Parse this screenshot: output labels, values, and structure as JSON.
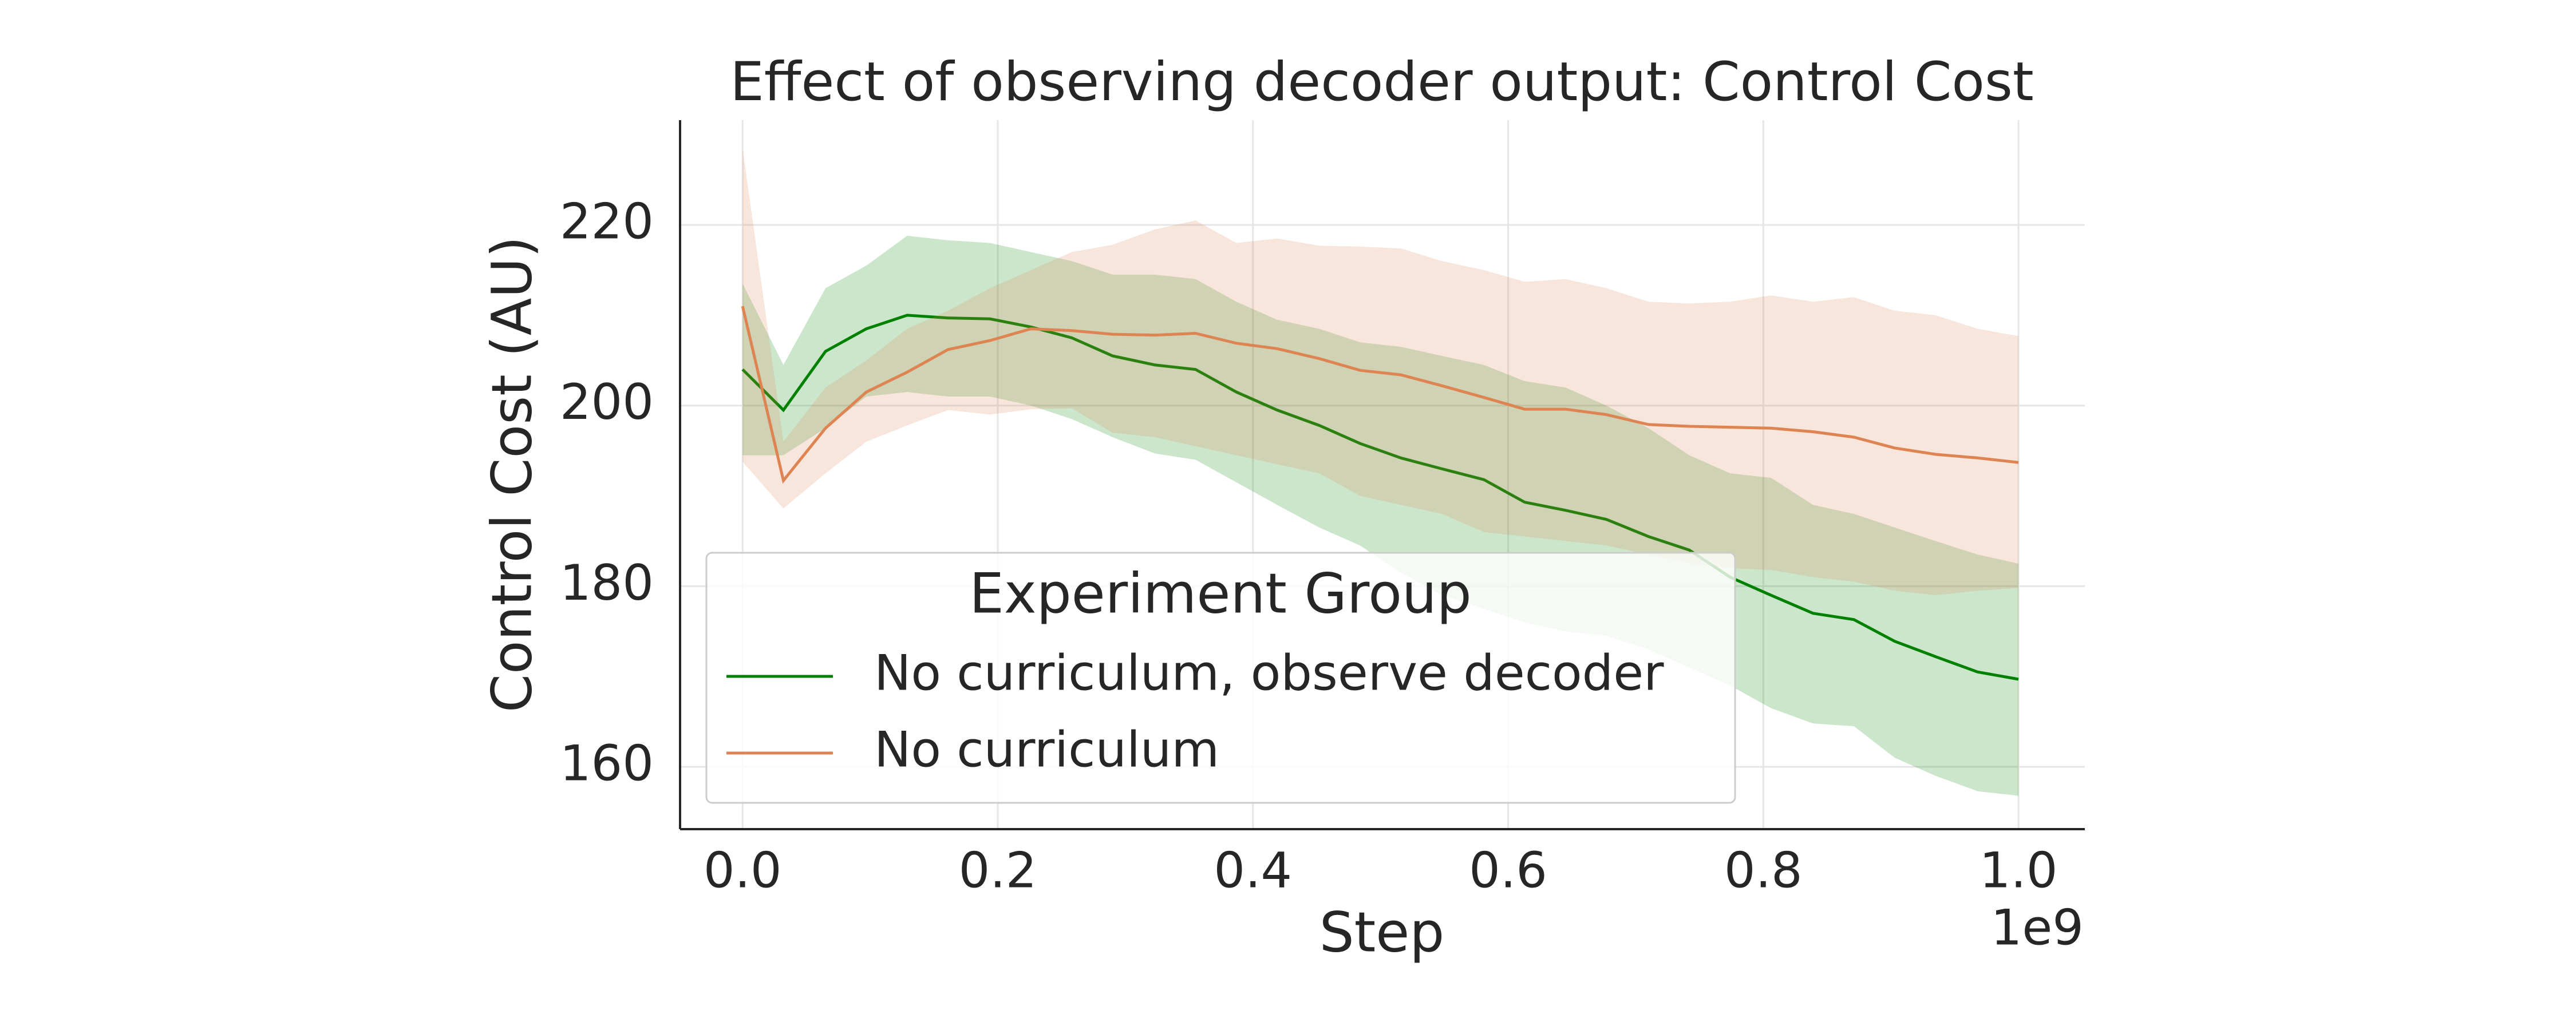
{
  "chart_data": {
    "type": "line",
    "title": "Effect of observing decoder output: Control Cost",
    "xlabel": "Step",
    "ylabel": "Control Cost (AU)",
    "x_offset_label": "1e9",
    "legend_title": "Experiment Group",
    "legend_loc": "lower left",
    "grid": true,
    "band_opacity": 0.2,
    "x": [
      0,
      0.032,
      0.065,
      0.097,
      0.129,
      0.161,
      0.194,
      0.226,
      0.258,
      0.29,
      0.323,
      0.355,
      0.387,
      0.419,
      0.452,
      0.484,
      0.516,
      0.548,
      0.581,
      0.613,
      0.645,
      0.677,
      0.71,
      0.742,
      0.774,
      0.806,
      0.839,
      0.871,
      0.903,
      0.935,
      0.968,
      1.0
    ],
    "series": [
      {
        "name": "No curriculum, observe decoder",
        "color": "#008000",
        "values": [
          204,
          199.5,
          206,
          208.5,
          210,
          209.7,
          209.6,
          208.7,
          207.5,
          205.5,
          204.5,
          204,
          201.5,
          199.5,
          197.8,
          195.8,
          194.2,
          193,
          191.8,
          189.3,
          188.4,
          187.4,
          185.5,
          184,
          181,
          179,
          177,
          176.3,
          173.9,
          172.2,
          170.5,
          169.7
        ],
        "upper": [
          213.5,
          204.5,
          213,
          215.5,
          218.8,
          218.3,
          218,
          217,
          216,
          214.5,
          214.5,
          214,
          211.5,
          209.5,
          208.5,
          207,
          206.5,
          205.5,
          204.5,
          202.7,
          202,
          200,
          197.5,
          194.5,
          192.5,
          192,
          189,
          188,
          186.5,
          185,
          183.5,
          182.5
        ],
        "lower": [
          194.5,
          194.5,
          197.5,
          201,
          201.5,
          201,
          201,
          200,
          198.5,
          196.5,
          194.7,
          194,
          191.5,
          189,
          186.5,
          184.5,
          181.5,
          179,
          177.5,
          176,
          175,
          174.5,
          173,
          171,
          169,
          166.5,
          164.8,
          164.5,
          161,
          159,
          157.3,
          156.8
        ]
      },
      {
        "name": "No curriculum",
        "color": "#dd8452",
        "values": [
          211,
          191.7,
          197.5,
          201.5,
          203.7,
          206.2,
          207.2,
          208.5,
          208.3,
          207.9,
          207.8,
          208,
          206.9,
          206.3,
          205.2,
          203.9,
          203.4,
          202.2,
          200.9,
          199.6,
          199.6,
          199,
          197.9,
          197.7,
          197.6,
          197.5,
          197.1,
          196.5,
          195.3,
          194.6,
          194.2,
          193.7
        ],
        "upper": [
          228.5,
          196,
          202,
          205,
          208.5,
          210.5,
          213,
          215,
          217,
          217.8,
          219.5,
          220.5,
          218,
          218.5,
          217.7,
          217.6,
          217.4,
          216,
          215,
          213.7,
          214,
          213,
          211.5,
          211.3,
          211.5,
          212.2,
          211.5,
          212,
          210.5,
          210,
          208.5,
          207.7
        ],
        "lower": [
          193.8,
          188.6,
          192.5,
          196,
          197.8,
          199.5,
          199,
          199.6,
          199.7,
          197,
          196.5,
          195.5,
          194.5,
          193.5,
          192.5,
          190,
          189,
          188,
          186,
          185.5,
          185,
          184.5,
          183.5,
          182.5,
          182,
          181.8,
          181,
          180.5,
          179.5,
          179,
          179.5,
          179.8
        ]
      }
    ],
    "xlim": [
      -0.049,
      1.052
    ],
    "xticks": [
      {
        "value": 0,
        "label": "0.0"
      },
      0.2,
      0.4,
      0.6,
      0.8,
      {
        "value": 1,
        "label": "1.0"
      }
    ],
    "ylim": [
      153.1,
      231.6
    ],
    "yticks": [
      160,
      180,
      200,
      220
    ]
  }
}
